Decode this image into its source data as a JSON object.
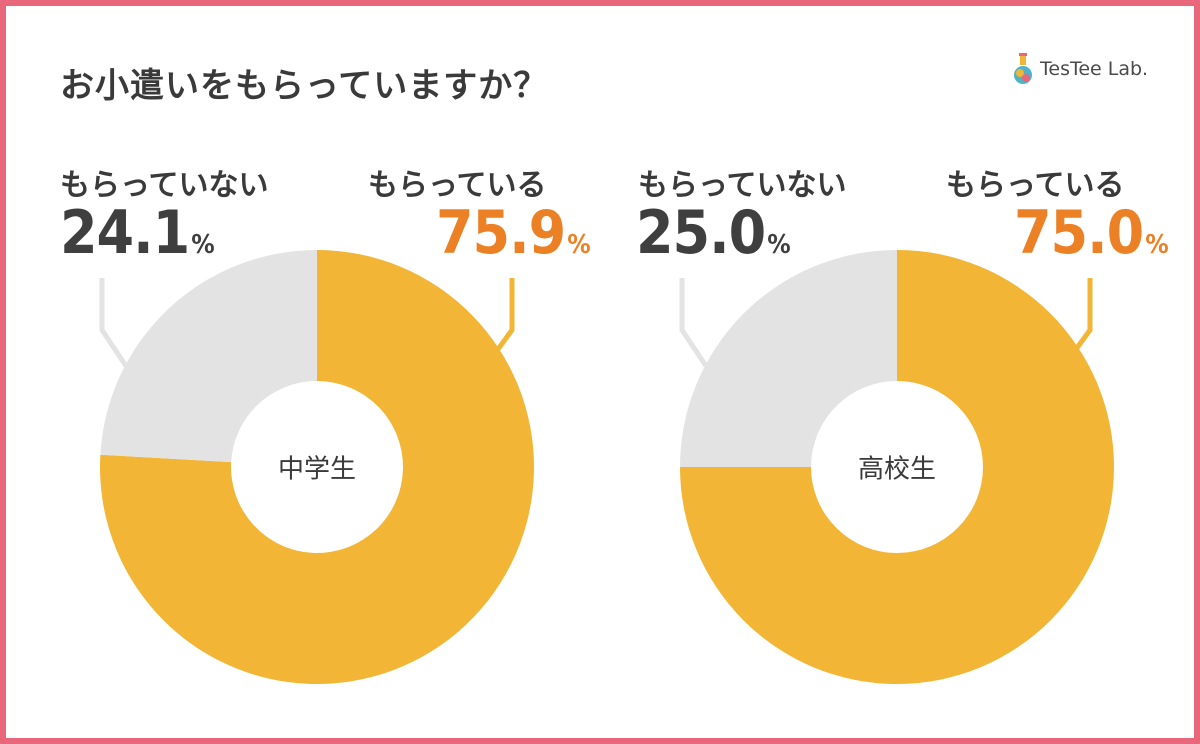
{
  "title": "お小遣いをもらっていますか？",
  "logo": {
    "text": "TesTee Lab."
  },
  "colors": {
    "frame": "#e8677a",
    "yes": "#f2b535",
    "no": "#e3e3e3",
    "pct_yes": "#ec8024",
    "pct_no": "#3f3f3f"
  },
  "chart_data": [
    {
      "type": "pie",
      "center_label": "中学生",
      "labels": [
        "もらっている",
        "もらっていない"
      ],
      "values": [
        75.9,
        24.1
      ],
      "value_texts": [
        "75.9",
        "24.1"
      ],
      "unit": "%"
    },
    {
      "type": "pie",
      "center_label": "高校生",
      "labels": [
        "もらっている",
        "もらっていない"
      ],
      "values": [
        75.0,
        25.0
      ],
      "value_texts": [
        "75.0",
        "25.0"
      ],
      "unit": "%"
    }
  ]
}
